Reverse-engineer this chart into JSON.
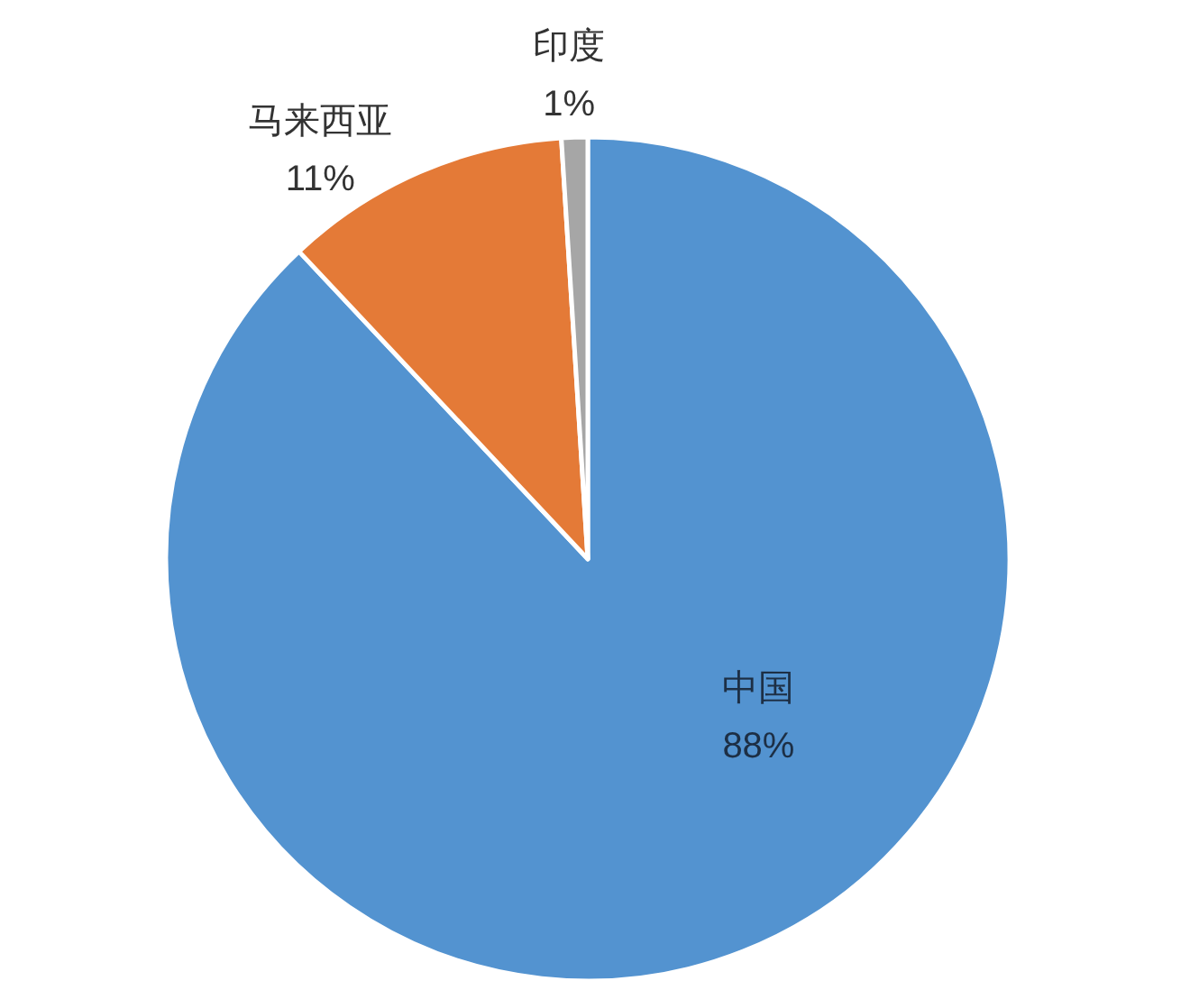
{
  "chart_data": {
    "type": "pie",
    "categories": [
      "中国",
      "马来西亚",
      "印度"
    ],
    "values": [
      88,
      11,
      1
    ],
    "value_labels": [
      "88%",
      "11%",
      "1%"
    ],
    "colors": [
      "#5393d0",
      "#e47a37",
      "#a6a6a6"
    ],
    "legend": false
  }
}
